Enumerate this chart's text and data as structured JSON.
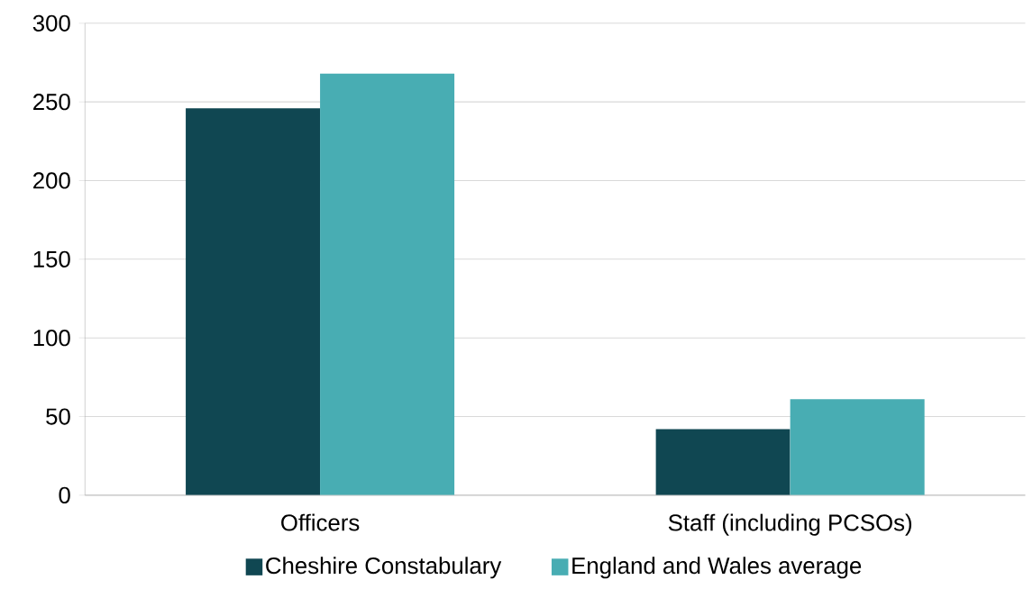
{
  "chart_data": {
    "type": "bar",
    "categories": [
      "Officers",
      "Staff (including PCSOs)"
    ],
    "series": [
      {
        "name": "Cheshire Constabulary",
        "color": "#104752",
        "values": [
          246,
          42
        ]
      },
      {
        "name": "England and Wales average",
        "color": "#48adb3",
        "values": [
          268,
          61
        ]
      }
    ],
    "ylim": [
      0,
      300
    ],
    "yticks": [
      0,
      50,
      100,
      150,
      200,
      250,
      300
    ],
    "grid": "y",
    "legend": "bottom"
  }
}
